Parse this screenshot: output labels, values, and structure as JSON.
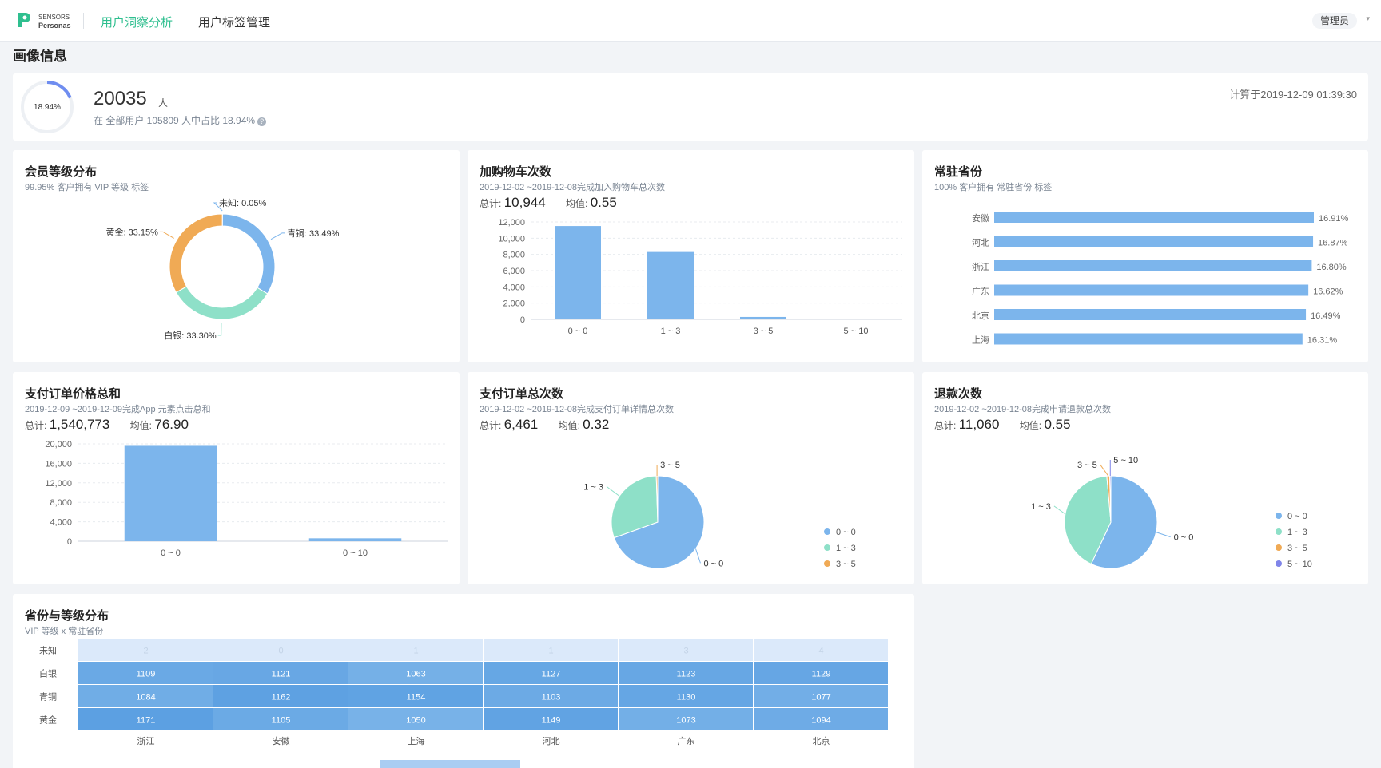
{
  "header": {
    "logo_line1": "SENSORS",
    "logo_line2": "Personas",
    "nav": [
      {
        "label": "用户洞察分析",
        "active": true
      },
      {
        "label": "用户标签管理",
        "active": false
      }
    ],
    "user_label": "管理员",
    "accent_color": "#2fbf8f"
  },
  "page_title": "画像信息",
  "summary": {
    "ring_label": "18.94%",
    "ring_fraction": 0.1894,
    "count": "20035",
    "unit": "人",
    "desc": "在 全部用户 105809 人中占比 18.94%",
    "help_icon": "?",
    "calc_time": "计算于2019-12-09 01:39:30"
  },
  "cards": {
    "vip": {
      "title": "会员等级分布",
      "sub": "99.95% 客户拥有 VIP 等级 标签"
    },
    "cart": {
      "title": "加购物车次数",
      "sub": "2019-12-02 ~2019-12-08完成加入购物车总次数",
      "total_label": "总计:",
      "total": "10,944",
      "avg_label": "均值:",
      "avg": "0.55"
    },
    "province": {
      "title": "常驻省份",
      "sub": "100% 客户拥有 常驻省份 标签"
    },
    "pay_sum": {
      "title": "支付订单价格总和",
      "sub": "2019-12-09 ~2019-12-09完成App 元素点击总和",
      "total_label": "总计:",
      "total": "1,540,773",
      "avg_label": "均值:",
      "avg": "76.90"
    },
    "pay_count": {
      "title": "支付订单总次数",
      "sub": "2019-12-02 ~2019-12-08完成支付订单详情总次数",
      "total_label": "总计:",
      "total": "6,461",
      "avg_label": "均值:",
      "avg": "0.32"
    },
    "refund": {
      "title": "退款次数",
      "sub": "2019-12-02 ~2019-12-08完成申请退款总次数",
      "total_label": "总计:",
      "total": "11,060",
      "avg_label": "均值:",
      "avg": "0.55"
    },
    "heatmap": {
      "title": "省份与等级分布",
      "sub": "VIP 等级 x 常驻省份"
    }
  },
  "chart_data": [
    {
      "id": "vip",
      "type": "pie",
      "donut": true,
      "slices": [
        {
          "name": "未知",
          "label": "未知: 0.05%",
          "value": 0.05,
          "color": "#7cb5ec"
        },
        {
          "name": "青铜",
          "label": "青铜: 33.49%",
          "value": 33.49,
          "color": "#7cb5ec"
        },
        {
          "name": "白银",
          "label": "白银: 33.30%",
          "value": 33.3,
          "color": "#8ee0c8"
        },
        {
          "name": "黄金",
          "label": "黄金: 33.15%",
          "value": 33.15,
          "color": "#f0aa55"
        }
      ]
    },
    {
      "id": "cart",
      "type": "bar",
      "categories": [
        "0 ~ 0",
        "1 ~ 3",
        "3 ~ 5",
        "5 ~ 10"
      ],
      "values": [
        11500,
        8300,
        300,
        0
      ],
      "yticks": [
        "0",
        "2,000",
        "4,000",
        "6,000",
        "8,000",
        "10,000",
        "12,000"
      ],
      "ylim": [
        0,
        12000
      ],
      "color": "#7cb5ec"
    },
    {
      "id": "province",
      "type": "bar",
      "orientation": "horizontal",
      "categories": [
        "安徽",
        "河北",
        "浙江",
        "广东",
        "北京",
        "上海"
      ],
      "values": [
        16.91,
        16.87,
        16.8,
        16.62,
        16.49,
        16.31
      ],
      "labels": [
        "16.91%",
        "16.87%",
        "16.80%",
        "16.62%",
        "16.49%",
        "16.31%"
      ],
      "color": "#7cb5ec"
    },
    {
      "id": "pay_sum",
      "type": "bar",
      "categories": [
        "0 ~ 0",
        "0 ~ 10"
      ],
      "values": [
        19600,
        600
      ],
      "yticks": [
        "0",
        "4,000",
        "8,000",
        "12,000",
        "16,000",
        "20,000"
      ],
      "ylim": [
        0,
        20000
      ],
      "color": "#7cb5ec"
    },
    {
      "id": "pay_count",
      "type": "pie",
      "slices": [
        {
          "name": "0 ~ 0",
          "value": 69.5,
          "color": "#7cb5ec"
        },
        {
          "name": "1 ~ 3",
          "value": 30.0,
          "color": "#8ee0c8"
        },
        {
          "name": "3 ~ 5",
          "value": 0.5,
          "color": "#f0aa55"
        }
      ],
      "legend": [
        "0 ~ 0",
        "1 ~ 3",
        "3 ~ 5"
      ]
    },
    {
      "id": "refund",
      "type": "pie",
      "slices": [
        {
          "name": "0 ~ 0",
          "value": 57.0,
          "color": "#7cb5ec"
        },
        {
          "name": "1 ~ 3",
          "value": 41.6,
          "color": "#8ee0c8"
        },
        {
          "name": "3 ~ 5",
          "value": 1.0,
          "color": "#f0aa55"
        },
        {
          "name": "5 ~ 10",
          "value": 0.4,
          "color": "#8085e9"
        }
      ],
      "legend": [
        "0 ~ 0",
        "1 ~ 3",
        "3 ~ 5",
        "5 ~ 10"
      ]
    },
    {
      "id": "heatmap",
      "type": "heatmap",
      "rows": [
        "未知",
        "白银",
        "青铜",
        "黄金"
      ],
      "cols": [
        "浙江",
        "安徽",
        "上海",
        "河北",
        "广东",
        "北京"
      ],
      "values": [
        [
          2,
          0,
          1,
          1,
          3,
          4
        ],
        [
          1109,
          1121,
          1063,
          1127,
          1123,
          1129
        ],
        [
          1084,
          1162,
          1154,
          1103,
          1130,
          1077
        ],
        [
          1171,
          1105,
          1050,
          1149,
          1073,
          1094
        ]
      ]
    }
  ]
}
